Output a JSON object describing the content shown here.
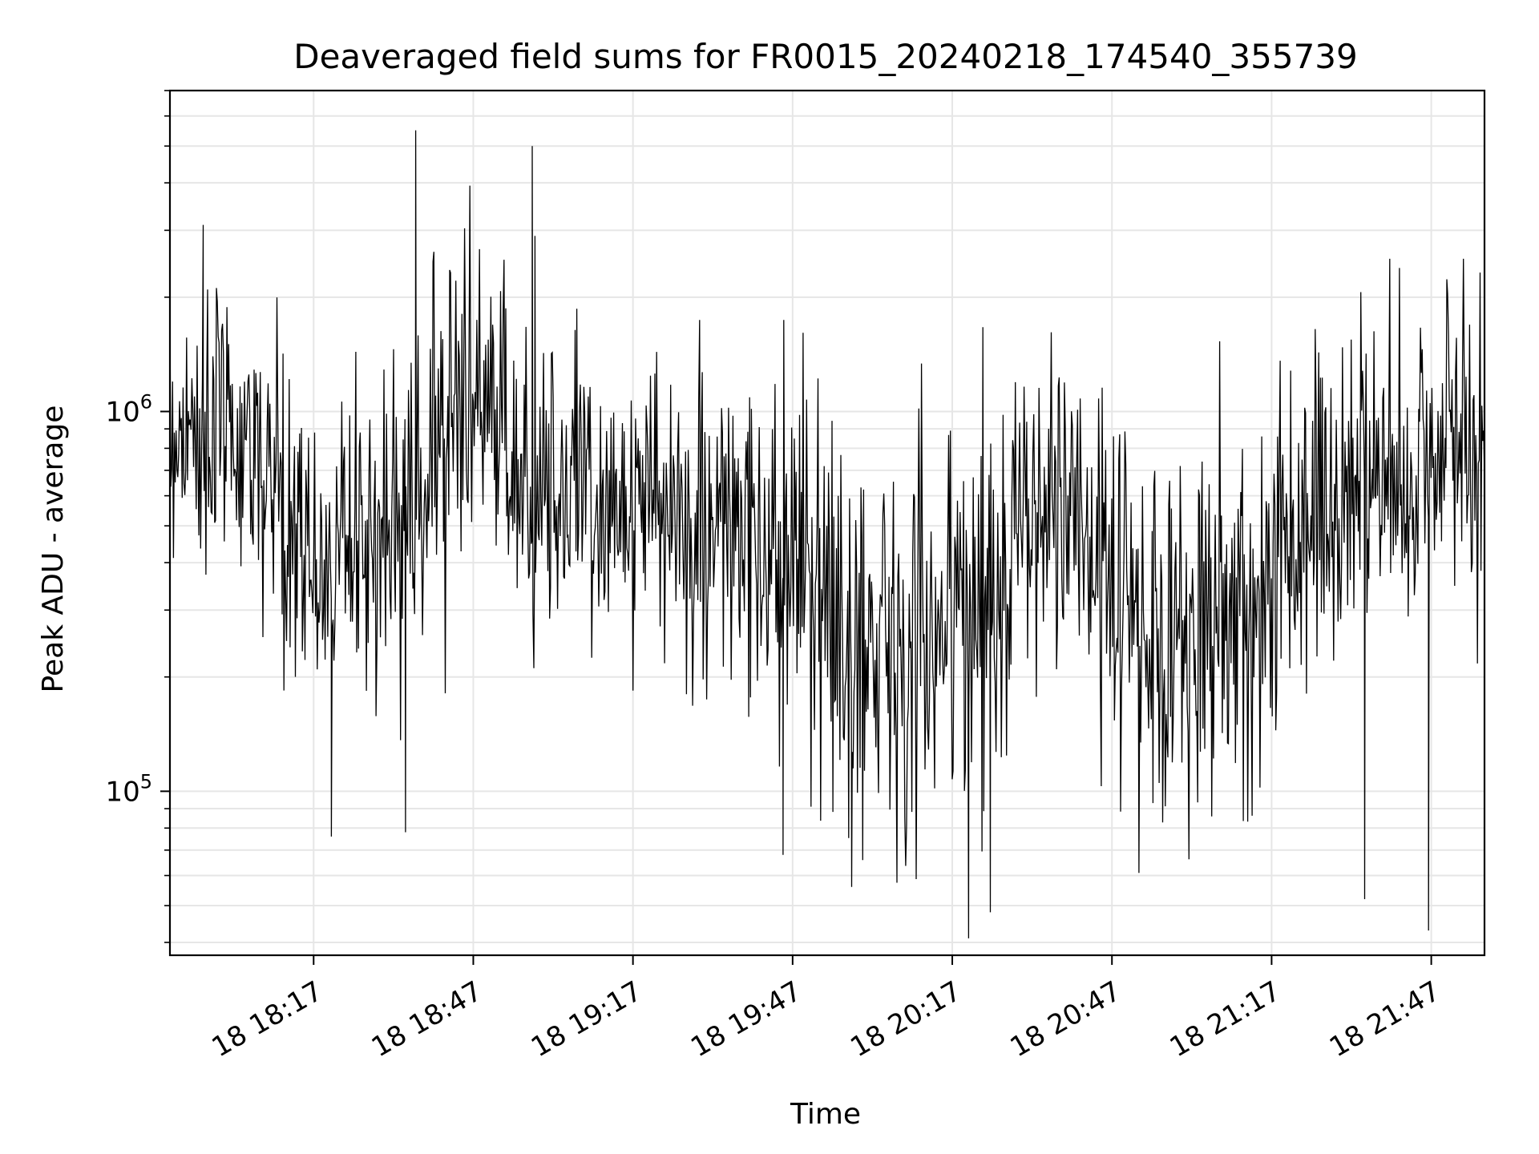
{
  "chart_data": {
    "type": "line",
    "title": "Deaveraged field sums for FR0015_20240218_174540_355739",
    "xlabel": "Time",
    "ylabel": "Peak ADU - average",
    "yscale": "log",
    "grid": true,
    "legend": "none",
    "line_color": "#000000",
    "grid_color": "#e6e6e6",
    "x_range": [
      "18 17:50",
      "18 21:57"
    ],
    "ylim": [
      37000,
      7000000
    ],
    "x_ticks": [
      {
        "label": "18 18:17",
        "minute_of_day": 1097
      },
      {
        "label": "18 18:47",
        "minute_of_day": 1127
      },
      {
        "label": "18 19:17",
        "minute_of_day": 1157
      },
      {
        "label": "18 19:47",
        "minute_of_day": 1187
      },
      {
        "label": "18 20:17",
        "minute_of_day": 1217
      },
      {
        "label": "18 20:47",
        "minute_of_day": 1247
      },
      {
        "label": "18 21:17",
        "minute_of_day": 1277
      },
      {
        "label": "18 21:47",
        "minute_of_day": 1307
      }
    ],
    "y_ticks": [
      {
        "base": "10",
        "exp": "5",
        "value": 100000
      },
      {
        "base": "10",
        "exp": "6",
        "value": 1000000
      }
    ],
    "envelope": {
      "x": [
        "18 17:50",
        "18 18:05",
        "18 18:15",
        "18 18:35",
        "18 18:45",
        "18 18:55",
        "18 19:20",
        "18 19:40",
        "18 19:58",
        "18 20:20",
        "18 20:35",
        "18 20:55",
        "18 21:10",
        "18 21:30",
        "18 21:57"
      ],
      "median": [
        900000,
        850000,
        380000,
        550000,
        1200000,
        700000,
        550000,
        450000,
        250000,
        280000,
        600000,
        250000,
        300000,
        600000,
        900000
      ],
      "low": [
        350000,
        250000,
        150000,
        100000,
        350000,
        200000,
        150000,
        120000,
        70000,
        80000,
        150000,
        70000,
        80000,
        150000,
        150000
      ],
      "high": [
        3000000,
        2500000,
        1200000,
        1600000,
        5000000,
        1700000,
        1500000,
        1500000,
        1500000,
        1400000,
        1600000,
        1500000,
        1500000,
        2000000,
        2800000
      ]
    },
    "annotated_points": [
      {
        "x": "18 18:36",
        "y": 5500000
      },
      {
        "x": "18 18:58",
        "y": 5000000
      },
      {
        "x": "18 18:58",
        "y": 2900000
      },
      {
        "x": "18 17:56",
        "y": 3100000
      },
      {
        "x": "18 18:20",
        "y": 76000
      },
      {
        "x": "18 18:34",
        "y": 78000
      },
      {
        "x": "18 20:20",
        "y": 41000
      },
      {
        "x": "18 20:24",
        "y": 48000
      },
      {
        "x": "18 21:46",
        "y": 43000
      },
      {
        "x": "18 21:34",
        "y": 52000
      },
      {
        "x": "18 19:45",
        "y": 68000
      },
      {
        "x": "18 19:58",
        "y": 56000
      }
    ]
  }
}
